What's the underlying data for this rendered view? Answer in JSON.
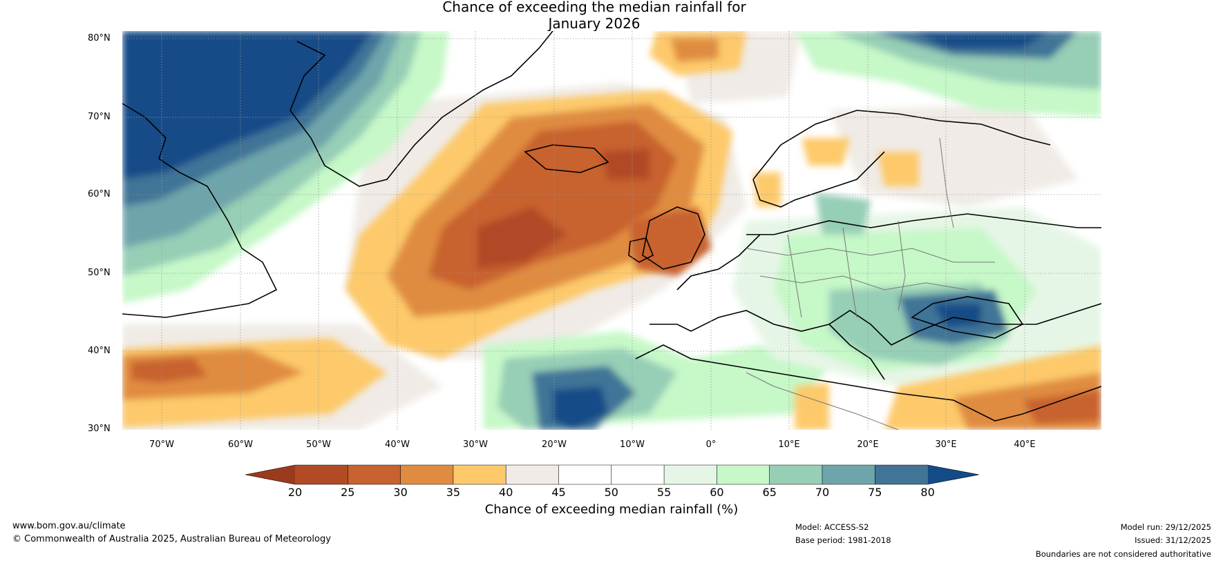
{
  "title_line1": "Chance of exceeding the median rainfall for",
  "title_line2": "January 2026",
  "lat_labels": [
    "80°N",
    "70°N",
    "60°N",
    "50°N",
    "40°N",
    "30°N"
  ],
  "lon_labels": [
    "70°W",
    "60°W",
    "50°W",
    "40°W",
    "30°W",
    "20°W",
    "10°W",
    "0°",
    "10°E",
    "20°E",
    "30°E",
    "40°E"
  ],
  "legend": {
    "ticks": [
      "20",
      "25",
      "30",
      "35",
      "40",
      "45",
      "50",
      "55",
      "60",
      "65",
      "70",
      "75",
      "80"
    ],
    "colors": [
      "#9c3a1c",
      "#b24a25",
      "#c8622f",
      "#e08c40",
      "#fdc96b",
      "#f0ebe6",
      "#ffffff",
      "#ffffff",
      "#e6f6e6",
      "#c6f8c8",
      "#96ceb6",
      "#6ea5ab",
      "#417597",
      "#124b87"
    ],
    "label": "Chance of exceeding median rainfall (%)"
  },
  "footer": {
    "website": "www.bom.gov.au/climate",
    "copyright": "© Commonwealth of Australia 2025, Australian Bureau of Meteorology",
    "model": "Model: ACCESS-S2",
    "base_period": "Base period: 1981-2018",
    "model_run": "Model run: 29/12/2025",
    "issued": "Issued: 31/12/2025",
    "disclaimer": "Boundaries are not considered authoritative"
  }
}
